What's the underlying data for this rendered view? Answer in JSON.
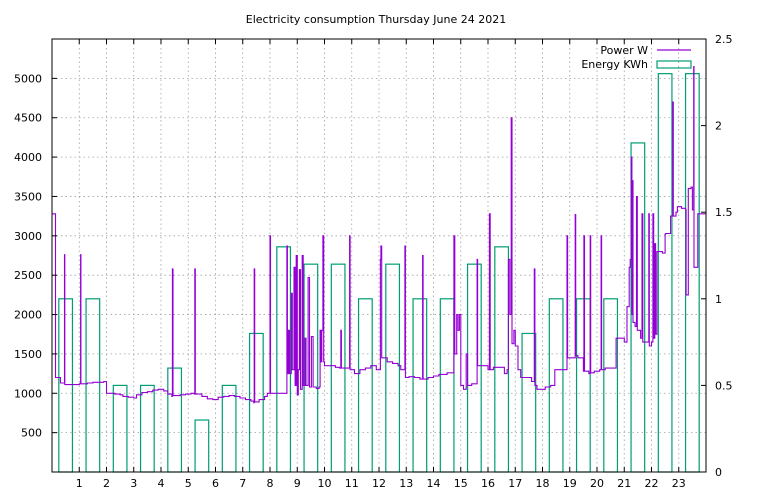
{
  "chart_data": {
    "type": "line",
    "title": "Electricity consumption Thursday June 24 2021",
    "xlabel": "",
    "ylabel": "",
    "xlim": [
      0,
      24
    ],
    "ylim": [
      0,
      5500
    ],
    "y2lim": [
      0,
      2.5
    ],
    "grid": true,
    "legend_position": "top-right",
    "x_ticks": [
      "1",
      "2",
      "3",
      "4",
      "5",
      "6",
      "7",
      "8",
      "9",
      "10",
      "11",
      "12",
      "13",
      "14",
      "15",
      "16",
      "17",
      "18",
      "19",
      "20",
      "21",
      "22",
      "23"
    ],
    "y_ticks": [
      "500",
      "1000",
      "1500",
      "2000",
      "2500",
      "3000",
      "3500",
      "4000",
      "4500",
      "5000"
    ],
    "y2_ticks": [
      "0",
      "0.5",
      "1",
      "1.5",
      "2",
      "2.5"
    ],
    "series": [
      {
        "name": "Power W",
        "axis": "y",
        "style": "line",
        "color": "#9400d3",
        "points": [
          [
            0.0,
            3280
          ],
          [
            0.12,
            3280
          ],
          [
            0.13,
            1200
          ],
          [
            0.3,
            1200
          ],
          [
            0.31,
            1130
          ],
          [
            0.45,
            1130
          ],
          [
            0.46,
            2760
          ],
          [
            0.47,
            1110
          ],
          [
            0.7,
            1110
          ],
          [
            0.9,
            1110
          ],
          [
            1.0,
            1120
          ],
          [
            1.05,
            2760
          ],
          [
            1.06,
            1120
          ],
          [
            1.3,
            1130
          ],
          [
            1.5,
            1140
          ],
          [
            1.7,
            1140
          ],
          [
            1.9,
            1150
          ],
          [
            2.0,
            1000
          ],
          [
            2.3,
            990
          ],
          [
            2.5,
            980
          ],
          [
            2.6,
            960
          ],
          [
            2.8,
            950
          ],
          [
            3.0,
            940
          ],
          [
            3.1,
            980
          ],
          [
            3.3,
            1010
          ],
          [
            3.5,
            1020
          ],
          [
            3.7,
            1040
          ],
          [
            3.9,
            1050
          ],
          [
            4.1,
            1030
          ],
          [
            4.25,
            990
          ],
          [
            4.4,
            960
          ],
          [
            4.42,
            2580
          ],
          [
            4.44,
            970
          ],
          [
            4.7,
            980
          ],
          [
            4.9,
            990
          ],
          [
            5.1,
            1000
          ],
          [
            5.22,
            990
          ],
          [
            5.24,
            2580
          ],
          [
            5.26,
            990
          ],
          [
            5.5,
            960
          ],
          [
            5.7,
            930
          ],
          [
            5.9,
            920
          ],
          [
            6.1,
            950
          ],
          [
            6.3,
            960
          ],
          [
            6.5,
            970
          ],
          [
            6.7,
            960
          ],
          [
            6.9,
            940
          ],
          [
            7.1,
            920
          ],
          [
            7.3,
            900
          ],
          [
            7.4,
            880
          ],
          [
            7.42,
            2580
          ],
          [
            7.44,
            890
          ],
          [
            7.6,
            920
          ],
          [
            7.8,
            960
          ],
          [
            7.9,
            1000
          ],
          [
            8.0,
            3000
          ],
          [
            8.02,
            1000
          ],
          [
            8.3,
            1000
          ],
          [
            8.5,
            1000
          ],
          [
            8.62,
            2870
          ],
          [
            8.64,
            1250
          ],
          [
            8.68,
            1800
          ],
          [
            8.72,
            1250
          ],
          [
            8.78,
            2270
          ],
          [
            8.82,
            1300
          ],
          [
            8.88,
            2600
          ],
          [
            8.92,
            1100
          ],
          [
            8.96,
            2750
          ],
          [
            9.0,
            980
          ],
          [
            9.04,
            1300
          ],
          [
            9.08,
            2570
          ],
          [
            9.12,
            1050
          ],
          [
            9.18,
            2750
          ],
          [
            9.22,
            1100
          ],
          [
            9.28,
            1700
          ],
          [
            9.32,
            1100
          ],
          [
            9.4,
            2470
          ],
          [
            9.45,
            1080
          ],
          [
            9.52,
            1720
          ],
          [
            9.58,
            1080
          ],
          [
            9.7,
            1060
          ],
          [
            9.8,
            1080
          ],
          [
            9.84,
            1800
          ],
          [
            9.86,
            1400
          ],
          [
            9.9,
            1800
          ],
          [
            9.94,
            3000
          ],
          [
            9.97,
            1400
          ],
          [
            10.0,
            1350
          ],
          [
            10.2,
            1350
          ],
          [
            10.4,
            1330
          ],
          [
            10.55,
            1320
          ],
          [
            10.6,
            1800
          ],
          [
            10.62,
            1320
          ],
          [
            10.8,
            1320
          ],
          [
            10.92,
            3000
          ],
          [
            10.94,
            1300
          ],
          [
            11.1,
            1250
          ],
          [
            11.3,
            1300
          ],
          [
            11.5,
            1320
          ],
          [
            11.7,
            1350
          ],
          [
            11.9,
            1300
          ],
          [
            12.05,
            2700
          ],
          [
            12.07,
            2870
          ],
          [
            12.1,
            1450
          ],
          [
            12.3,
            1400
          ],
          [
            12.5,
            1380
          ],
          [
            12.7,
            1350
          ],
          [
            12.8,
            1300
          ],
          [
            12.95,
            2870
          ],
          [
            12.97,
            1200
          ],
          [
            13.1,
            1210
          ],
          [
            13.3,
            1200
          ],
          [
            13.5,
            1180
          ],
          [
            13.6,
            2750
          ],
          [
            13.62,
            1180
          ],
          [
            13.8,
            1200
          ],
          [
            14.0,
            1220
          ],
          [
            14.2,
            1240
          ],
          [
            14.5,
            1260
          ],
          [
            14.7,
            1260
          ],
          [
            14.75,
            3000
          ],
          [
            14.78,
            1500
          ],
          [
            14.85,
            2000
          ],
          [
            14.9,
            1800
          ],
          [
            14.95,
            2000
          ],
          [
            15.0,
            1100
          ],
          [
            15.1,
            1050
          ],
          [
            15.2,
            1500
          ],
          [
            15.25,
            1100
          ],
          [
            15.4,
            1120
          ],
          [
            15.6,
            2700
          ],
          [
            15.62,
            1350
          ],
          [
            15.8,
            1350
          ],
          [
            16.0,
            1300
          ],
          [
            16.05,
            3280
          ],
          [
            16.08,
            1300
          ],
          [
            16.2,
            1330
          ],
          [
            16.4,
            1330
          ],
          [
            16.6,
            1250
          ],
          [
            16.7,
            1300
          ],
          [
            16.75,
            2700
          ],
          [
            16.8,
            2000
          ],
          [
            16.85,
            4500
          ],
          [
            16.88,
            1630
          ],
          [
            16.95,
            1800
          ],
          [
            17.0,
            1600
          ],
          [
            17.1,
            1300
          ],
          [
            17.2,
            1200
          ],
          [
            17.4,
            1200
          ],
          [
            17.6,
            1150
          ],
          [
            17.7,
            2580
          ],
          [
            17.72,
            1100
          ],
          [
            17.8,
            1050
          ],
          [
            18.0,
            1050
          ],
          [
            18.1,
            1080
          ],
          [
            18.3,
            1100
          ],
          [
            18.45,
            1300
          ],
          [
            18.6,
            1300
          ],
          [
            18.8,
            1300
          ],
          [
            18.9,
            3000
          ],
          [
            18.92,
            1450
          ],
          [
            19.1,
            1450
          ],
          [
            19.2,
            3270
          ],
          [
            19.22,
            1480
          ],
          [
            19.3,
            1450
          ],
          [
            19.5,
            1280
          ],
          [
            19.52,
            3000
          ],
          [
            19.54,
            1280
          ],
          [
            19.7,
            1250
          ],
          [
            19.75,
            3000
          ],
          [
            19.77,
            1260
          ],
          [
            19.9,
            1280
          ],
          [
            20.1,
            1300
          ],
          [
            20.15,
            3000
          ],
          [
            20.17,
            1300
          ],
          [
            20.3,
            1320
          ],
          [
            20.5,
            1320
          ],
          [
            20.7,
            1700
          ],
          [
            20.9,
            1700
          ],
          [
            21.0,
            1650
          ],
          [
            21.1,
            2100
          ],
          [
            21.18,
            2600
          ],
          [
            21.22,
            2700
          ],
          [
            21.26,
            4000
          ],
          [
            21.28,
            2000
          ],
          [
            21.3,
            3700
          ],
          [
            21.32,
            1900
          ],
          [
            21.4,
            1850
          ],
          [
            21.45,
            3500
          ],
          [
            21.48,
            1800
          ],
          [
            21.6,
            1700
          ],
          [
            21.65,
            3280
          ],
          [
            21.68,
            1650
          ],
          [
            21.8,
            1650
          ],
          [
            21.9,
            3280
          ],
          [
            21.92,
            1600
          ],
          [
            22.0,
            1650
          ],
          [
            22.05,
            3280
          ],
          [
            22.08,
            1700
          ],
          [
            22.12,
            2900
          ],
          [
            22.15,
            1750
          ],
          [
            22.2,
            2800
          ],
          [
            22.4,
            2780
          ],
          [
            22.5,
            3020
          ],
          [
            22.52,
            3030
          ],
          [
            22.7,
            3250
          ],
          [
            22.78,
            4700
          ],
          [
            22.8,
            3250
          ],
          [
            22.9,
            3300
          ],
          [
            22.95,
            3370
          ],
          [
            23.1,
            3350
          ],
          [
            23.2,
            3350
          ],
          [
            23.25,
            3330
          ],
          [
            23.27,
            2250
          ],
          [
            23.35,
            3600
          ],
          [
            23.45,
            3620
          ],
          [
            23.5,
            3330
          ],
          [
            23.55,
            5150
          ],
          [
            23.56,
            2600
          ],
          [
            23.7,
            3280
          ]
        ]
      },
      {
        "name": "Energy KWh",
        "axis": "y2",
        "style": "boxes",
        "color": "#009e73",
        "x": [
          0,
          1,
          2,
          3,
          4,
          5,
          6,
          7,
          8,
          9,
          10,
          11,
          12,
          13,
          14,
          15,
          16,
          17,
          18,
          19,
          20,
          21,
          22,
          23
        ],
        "values": [
          1.0,
          1.0,
          0.5,
          0.5,
          0.6,
          0.3,
          0.5,
          0.8,
          1.3,
          1.2,
          1.2,
          1.0,
          1.2,
          1.0,
          1.0,
          1.2,
          1.3,
          0.8,
          1.0,
          1.0,
          1.0,
          1.9,
          2.3,
          2.3
        ]
      }
    ]
  }
}
